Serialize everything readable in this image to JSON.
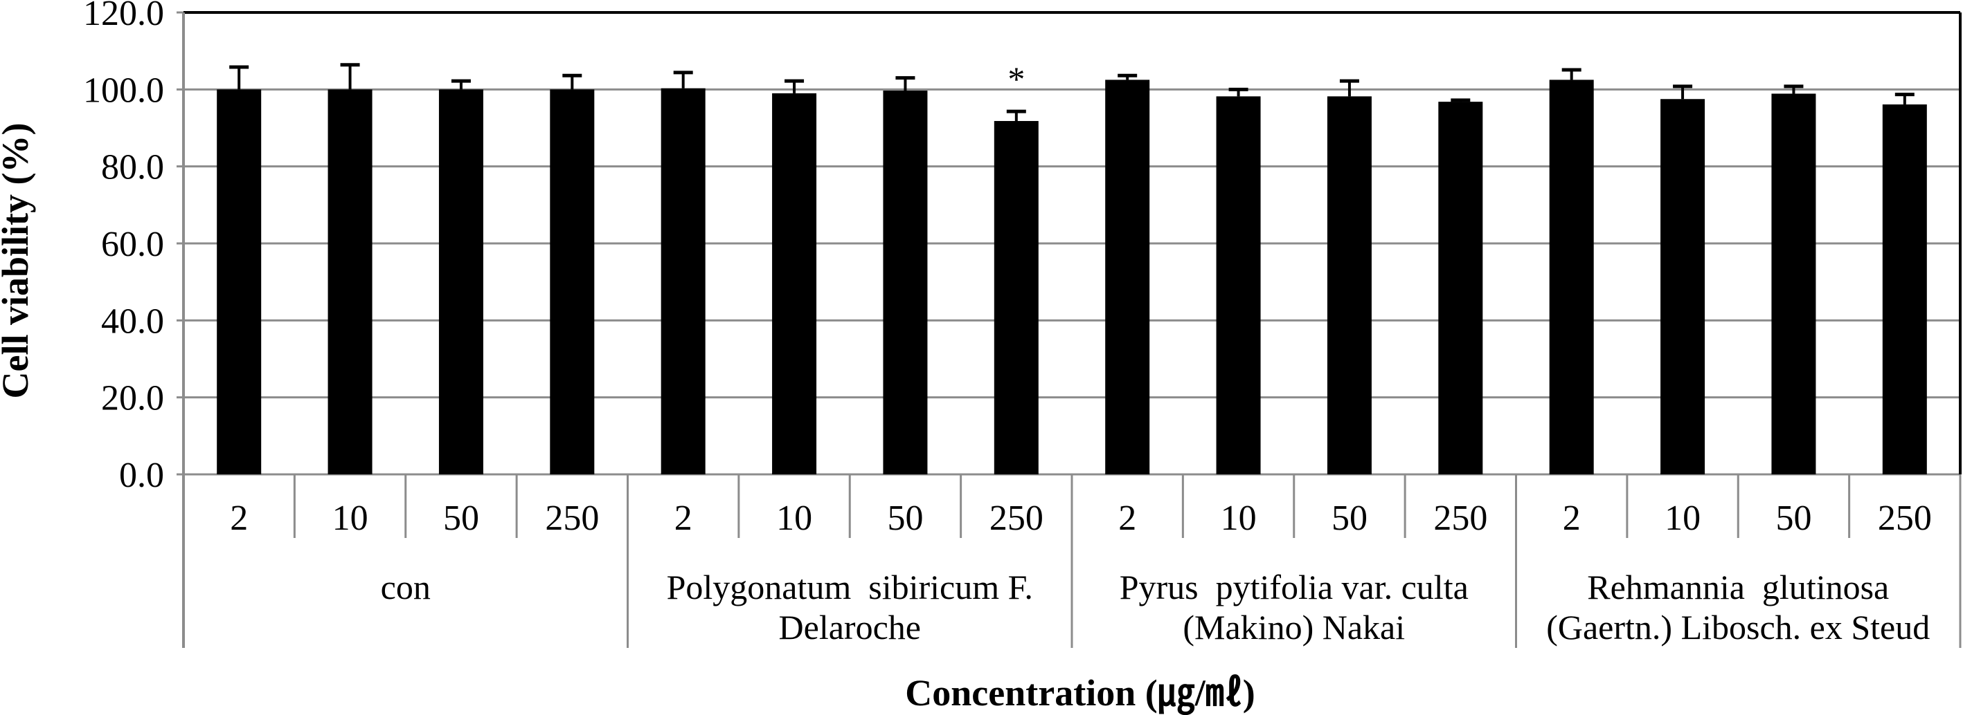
{
  "chart_data": {
    "type": "bar",
    "title": "",
    "xlabel": "Concentration (㎍/㎖)",
    "ylabel": "Cell viability (%)",
    "ylim": [
      0,
      120
    ],
    "yticks": [
      "0.0",
      "20.0",
      "40.0",
      "60.0",
      "80.0",
      "100.0",
      "120.0"
    ],
    "grid": true,
    "legend": "none",
    "bar_color": "#000000",
    "gridline_color": "#8c8c8c",
    "axis_color": "#8c8c8c",
    "frame_color": "#000000",
    "groups": [
      {
        "label_lines": [
          "con"
        ],
        "categories": [
          "2",
          "10",
          "50",
          "250"
        ],
        "values": [
          100.0,
          100.0,
          100.0,
          100.0
        ],
        "errors": [
          5.8,
          6.4,
          2.2,
          3.6
        ],
        "annotations": [
          "",
          "",
          "",
          ""
        ]
      },
      {
        "label_lines": [
          "Polygonatum  sibiricum F.",
          "Delaroche"
        ],
        "categories": [
          "2",
          "10",
          "50",
          "250"
        ],
        "values": [
          100.3,
          99.0,
          99.7,
          91.8
        ],
        "errors": [
          4.1,
          3.2,
          3.3,
          2.5
        ],
        "annotations": [
          "",
          "",
          "",
          "*"
        ]
      },
      {
        "label_lines": [
          "Pyrus  pytifolia var. culta",
          "(Makino) Nakai"
        ],
        "categories": [
          "2",
          "10",
          "50",
          "250"
        ],
        "values": [
          102.5,
          98.2,
          98.2,
          96.8
        ],
        "errors": [
          1.1,
          1.8,
          4.0,
          0.4
        ],
        "annotations": [
          "",
          "",
          "",
          ""
        ]
      },
      {
        "label_lines": [
          "Rehmannia  glutinosa",
          "(Gaertn.) Libosch. ex Steud"
        ],
        "categories": [
          "2",
          "10",
          "50",
          "250"
        ],
        "values": [
          102.5,
          97.5,
          98.9,
          96.1
        ],
        "errors": [
          2.6,
          3.3,
          1.9,
          2.6
        ],
        "annotations": [
          "",
          "",
          "",
          ""
        ]
      }
    ]
  }
}
